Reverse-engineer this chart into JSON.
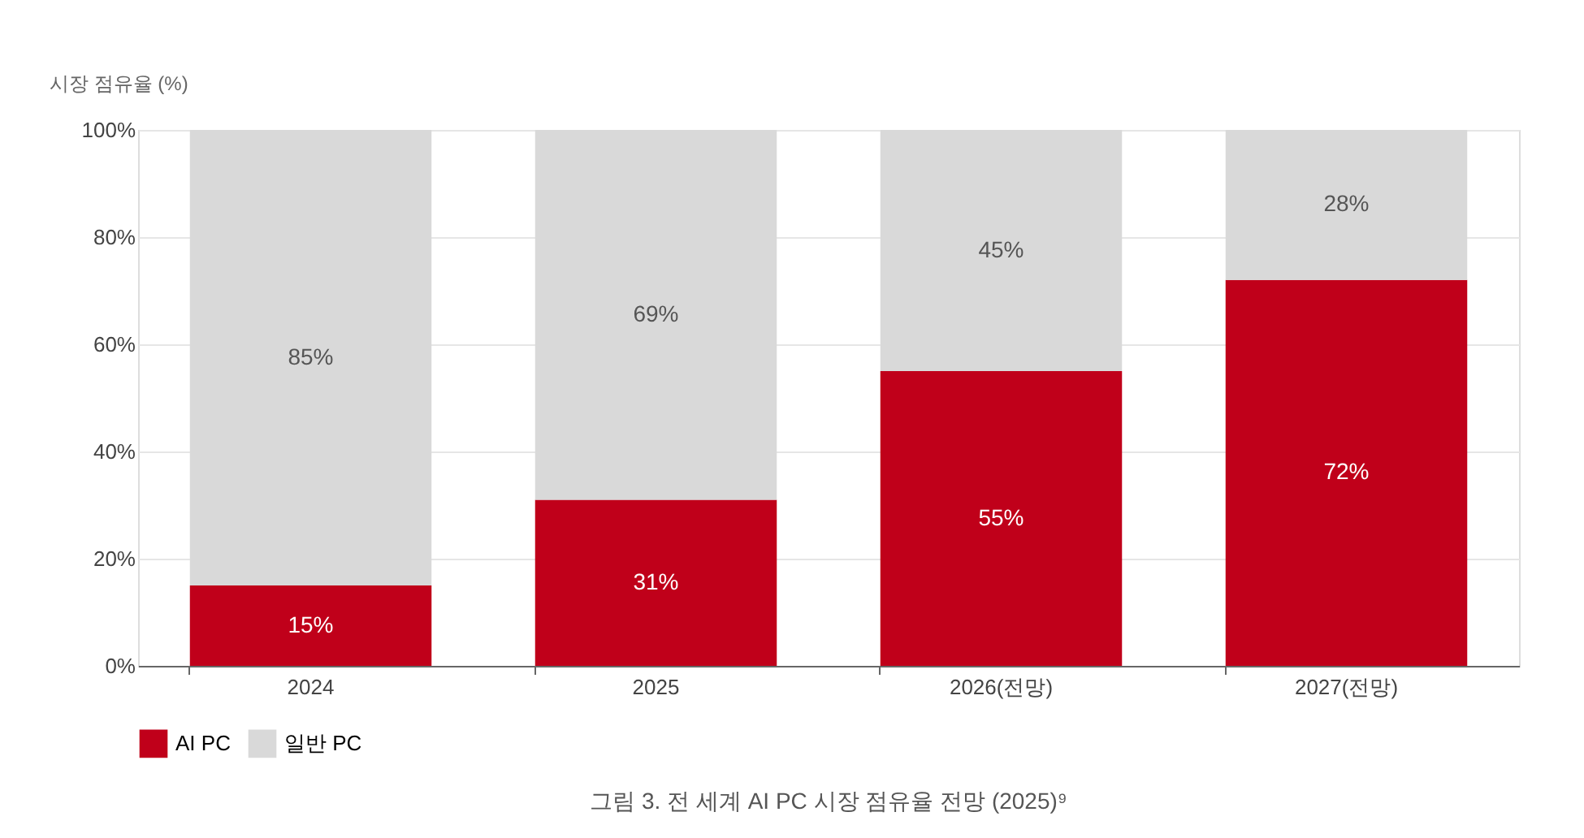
{
  "chart_data": {
    "type": "bar",
    "stacked": true,
    "ylabel": "시장 점유율 (%)",
    "categories": [
      "2024",
      "2025",
      "2026(전망)",
      "2027(전망)"
    ],
    "series": [
      {
        "name": "AI PC",
        "color": "#c0001a",
        "values": [
          15,
          31,
          55,
          72
        ],
        "value_labels": [
          "15%",
          "31%",
          "55%",
          "72%"
        ]
      },
      {
        "name": "일반 PC",
        "color": "#d9d9d9",
        "values": [
          85,
          69,
          45,
          28
        ],
        "value_labels": [
          "85%",
          "69%",
          "45%",
          "28%"
        ]
      }
    ],
    "ylim": [
      0,
      100
    ],
    "yticks": [
      {
        "value": 0,
        "label": "0%"
      },
      {
        "value": 20,
        "label": "20%"
      },
      {
        "value": 40,
        "label": "40%"
      },
      {
        "value": 60,
        "label": "60%"
      },
      {
        "value": 80,
        "label": "80%"
      },
      {
        "value": 100,
        "label": "100%"
      }
    ],
    "grid": "y",
    "legend": "bottom",
    "annotations": [
      "그림 3. 전 세계 AI PC 시장 점유율 전망 (2025)⁹"
    ]
  }
}
